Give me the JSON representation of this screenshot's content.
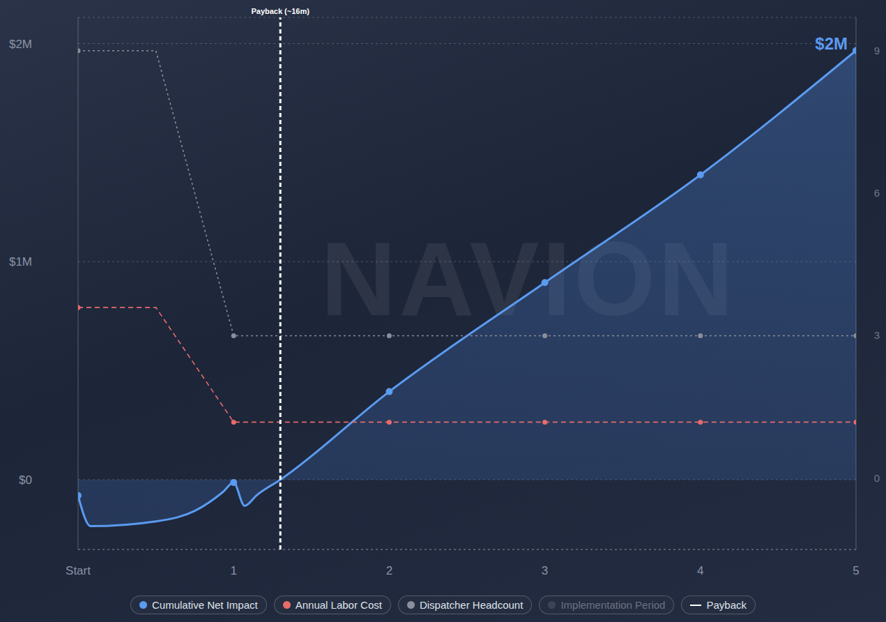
{
  "chart_data": {
    "type": "line",
    "watermark": "NAVION",
    "xlim": [
      0,
      5
    ],
    "xticks": [
      {
        "value": 0,
        "label": "Start"
      },
      1,
      2,
      3,
      4,
      5
    ],
    "ylim": [
      -320000,
      2120000
    ],
    "yticks": [
      {
        "value": 0,
        "label": "$0"
      },
      {
        "value": 1000000,
        "label": "$1M"
      },
      {
        "value": 2000000,
        "label": "$2M"
      }
    ],
    "y2lim": [
      -1.5,
      9.7
    ],
    "y2ticks": [
      0,
      3,
      6,
      9
    ],
    "grid": true,
    "legend": "bottom",
    "series": [
      {
        "name": "Cumulative Net Impact",
        "type": "area",
        "color": "#5b9bf0",
        "line_style": "solid",
        "marker": "circle",
        "end_label": "$2M",
        "x": [
          0,
          0.08,
          0.5,
          0.75,
          0.93,
          1,
          1.07,
          1.15,
          1.3,
          2,
          3,
          4,
          5
        ],
        "values": [
          -73000,
          -213000,
          -191000,
          -143000,
          -57000,
          -13000,
          -120000,
          -70000,
          0,
          404000,
          904000,
          1398000,
          1968000
        ]
      },
      {
        "name": "Annual Labor Cost",
        "type": "line",
        "color": "#e86b6b",
        "line_style": "dashed",
        "marker": "circle",
        "x": [
          0,
          0.5,
          1,
          2,
          3,
          4,
          5
        ],
        "values": [
          790000,
          790000,
          264000,
          264000,
          264000,
          264000,
          264000
        ]
      },
      {
        "name": "Dispatcher Headcount",
        "type": "line",
        "axis": "y2",
        "color": "#8a8f9c",
        "line_style": "dotted",
        "marker": "circle",
        "x": [
          0,
          0.5,
          1,
          2,
          3,
          4,
          5
        ],
        "values": [
          9,
          9,
          3,
          3,
          3,
          3,
          3
        ]
      }
    ],
    "inactive_series": [
      {
        "name": "Implementation Period"
      }
    ],
    "reference_line": {
      "name": "Payback",
      "label": "Payback (~16m)",
      "x": 1.3
    }
  }
}
